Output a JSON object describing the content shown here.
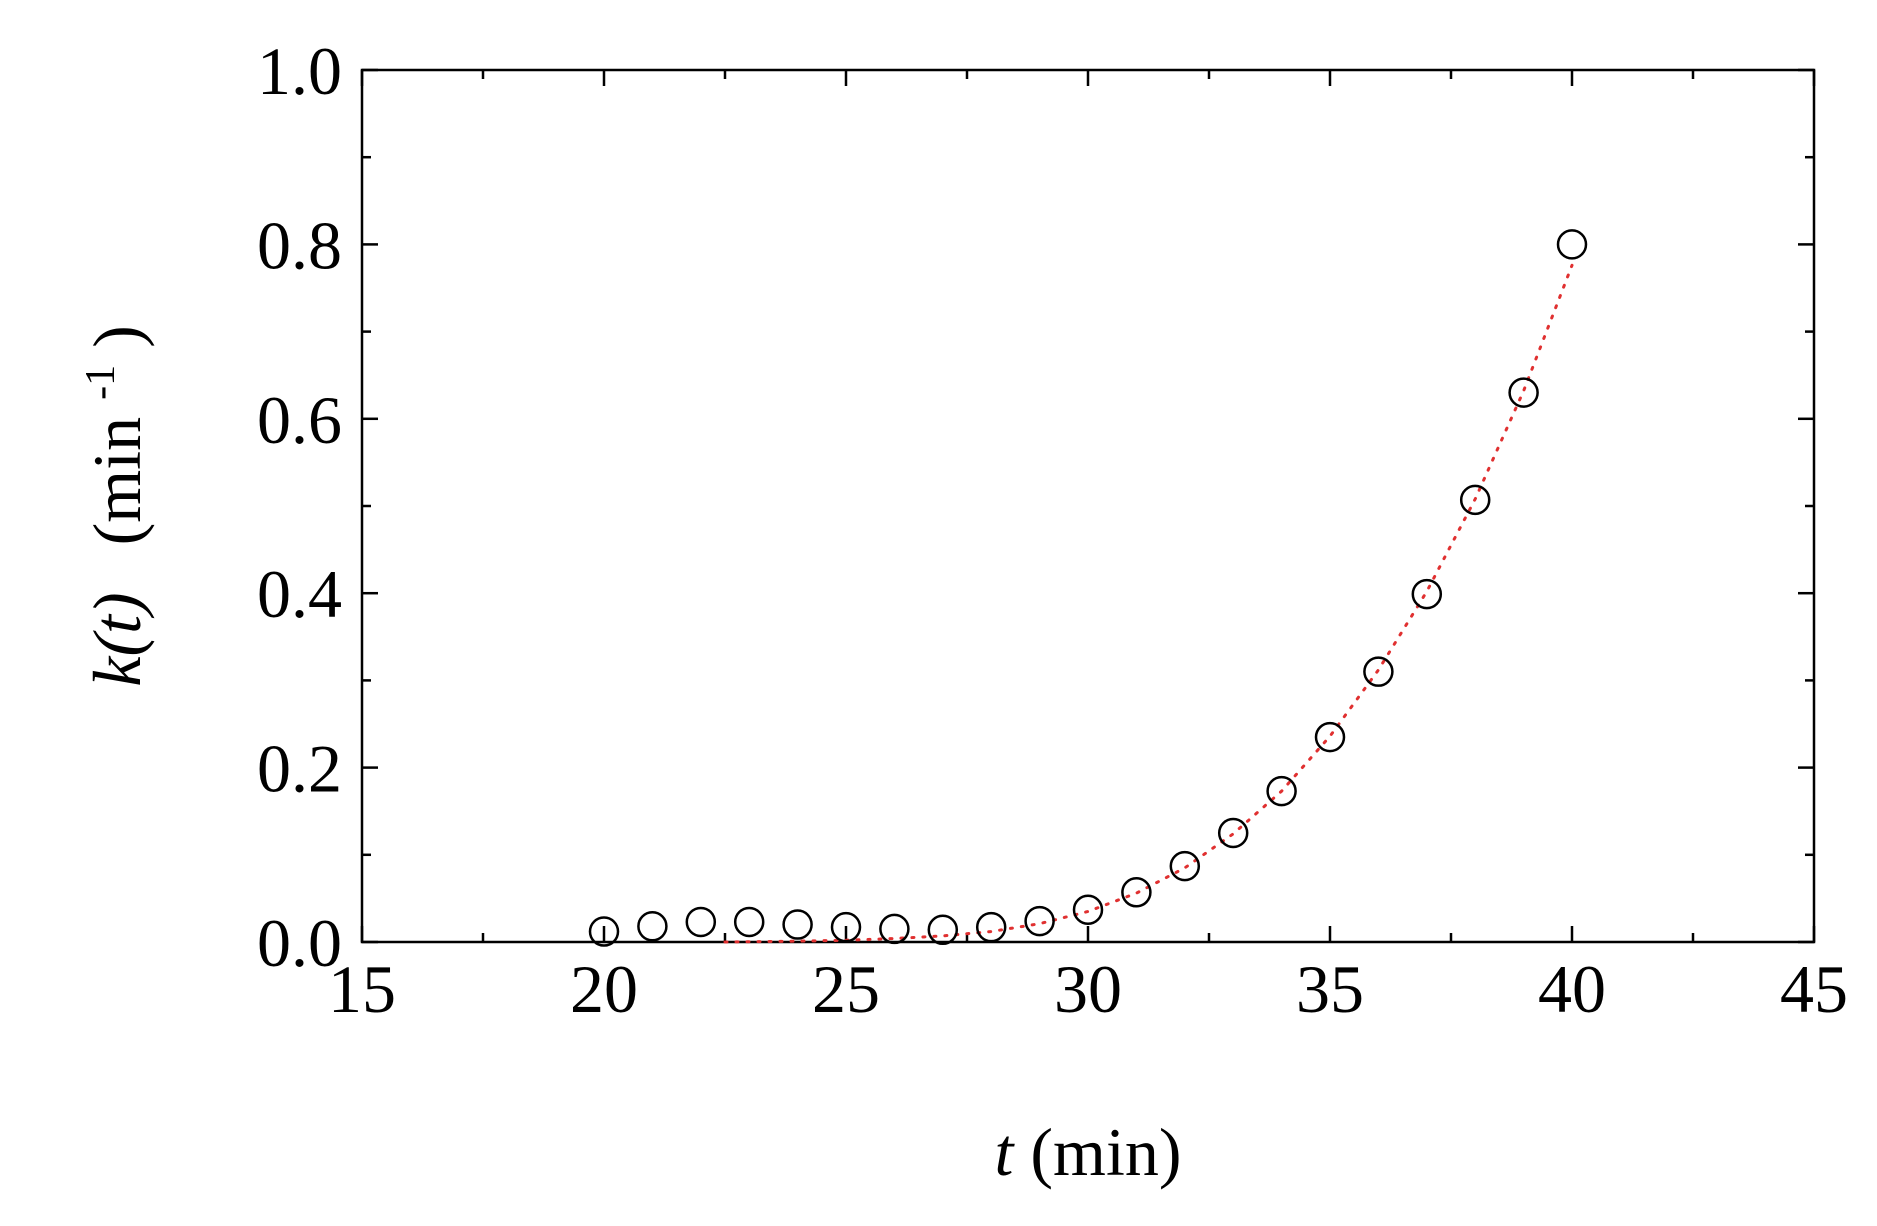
{
  "chart_data": {
    "type": "scatter",
    "title": "",
    "xlabel": {
      "var": "t",
      "unit": "(min)"
    },
    "ylabel": {
      "var": "k(t)",
      "unit_pre": "(min",
      "unit_sup": "-1",
      "unit_post": ")"
    },
    "xlim": [
      15,
      45
    ],
    "ylim": [
      0.0,
      1.0
    ],
    "xticks": [
      "15",
      "20",
      "25",
      "30",
      "35",
      "40",
      "45"
    ],
    "yticks": [
      "0.0",
      "0.2",
      "0.4",
      "0.6",
      "0.8",
      "1.0"
    ],
    "grid": false,
    "legend": "none",
    "series": [
      {
        "marker": "open-circle",
        "color": "#000000",
        "x": [
          20,
          21,
          22,
          23,
          24,
          25,
          26,
          27,
          28,
          29,
          30,
          31,
          32,
          33,
          34,
          35,
          36,
          37,
          38,
          39,
          40
        ],
        "y": [
          0.012,
          0.018,
          0.023,
          0.023,
          0.02,
          0.017,
          0.015,
          0.014,
          0.017,
          0.024,
          0.037,
          0.057,
          0.087,
          0.125,
          0.173,
          0.235,
          0.31,
          0.399,
          0.507,
          0.63,
          0.8
        ]
      }
    ],
    "fit_line": {
      "style": "dotted",
      "color": "#e03030",
      "x": [
        22.5,
        24,
        25,
        26,
        27,
        28,
        29,
        30,
        31,
        32,
        33,
        34,
        35,
        36,
        37,
        38,
        39,
        40
      ],
      "y": [
        0.0,
        0.001,
        0.002,
        0.004,
        0.007,
        0.012,
        0.021,
        0.035,
        0.056,
        0.085,
        0.124,
        0.173,
        0.236,
        0.312,
        0.402,
        0.508,
        0.632,
        0.776
      ]
    }
  }
}
